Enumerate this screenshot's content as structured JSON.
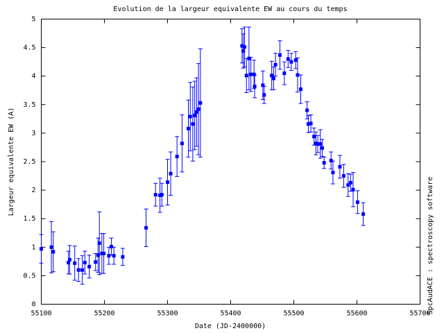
{
  "chart_data": {
    "type": "scatter",
    "title": "Evolution de la largeur equivalente EW au cours du temps",
    "x_label": "Date (JD-2400000)",
    "y_label": "Largeur equivalente EW (A)",
    "annotation": "SpcAudACE : spectroscopy software",
    "color": "#0000ff",
    "xlim": [
      55100,
      55700
    ],
    "ylim": [
      0,
      5
    ],
    "xticks": [
      55100,
      55200,
      55300,
      55400,
      55500,
      55600,
      55700
    ],
    "yticks": [
      0,
      0.5,
      1,
      1.5,
      2,
      2.5,
      3,
      3.5,
      4,
      4.5,
      5
    ],
    "x": [
      55100,
      55116,
      55119,
      55143,
      55145,
      55153,
      55159,
      55165,
      55169,
      55176,
      55186,
      55190,
      55192,
      55196,
      55199,
      55207,
      55211,
      55215,
      55229,
      55266,
      55281,
      55288,
      55291,
      55300,
      55305,
      55315,
      55323,
      55333,
      55336,
      55340,
      55343,
      55346,
      55349,
      55352,
      55418,
      55420,
      55422,
      55425,
      55429,
      55432,
      55437,
      55438,
      55451,
      55453,
      55465,
      55468,
      55471,
      55478,
      55485,
      55491,
      55496,
      55503,
      55506,
      55511,
      55521,
      55523,
      55527,
      55532,
      55535,
      55538,
      55542,
      55545,
      55548,
      55559,
      55562,
      55573,
      55579,
      55586,
      55590,
      55594,
      55601,
      55610
    ],
    "values": [
      0.97,
      1.0,
      0.92,
      0.73,
      0.78,
      0.72,
      0.6,
      0.6,
      0.73,
      0.66,
      0.74,
      0.86,
      1.07,
      0.89,
      0.89,
      0.85,
      1.01,
      0.85,
      0.83,
      1.34,
      1.92,
      1.91,
      1.92,
      2.14,
      2.29,
      2.59,
      2.82,
      3.08,
      3.29,
      3.16,
      3.31,
      3.37,
      3.42,
      3.53,
      4.53,
      4.44,
      4.51,
      4.01,
      4.31,
      4.03,
      4.03,
      3.82,
      3.84,
      3.67,
      4.01,
      3.96,
      4.2,
      4.37,
      4.05,
      4.3,
      4.25,
      4.28,
      4.02,
      3.77,
      3.4,
      3.16,
      3.17,
      2.94,
      2.82,
      2.81,
      2.81,
      2.74,
      2.48,
      2.52,
      2.31,
      2.41,
      2.25,
      2.09,
      2.13,
      2.01,
      1.79,
      1.58
    ],
    "errors": [
      0.25,
      0.45,
      0.35,
      0.2,
      0.25,
      0.3,
      0.2,
      0.25,
      0.2,
      0.2,
      0.15,
      0.3,
      0.55,
      0.35,
      0.35,
      0.15,
      0.15,
      0.15,
      0.15,
      0.33,
      0.2,
      0.3,
      0.2,
      0.4,
      0.38,
      0.35,
      0.5,
      0.5,
      0.6,
      0.65,
      0.6,
      0.6,
      0.8,
      0.95,
      0.3,
      0.3,
      0.35,
      0.3,
      0.55,
      0.3,
      0.25,
      0.2,
      0.25,
      0.15,
      0.25,
      0.2,
      0.2,
      0.25,
      0.2,
      0.15,
      0.15,
      0.15,
      0.3,
      0.25,
      0.15,
      0.15,
      0.15,
      0.15,
      0.2,
      0.15,
      0.25,
      0.15,
      0.1,
      0.15,
      0.2,
      0.2,
      0.2,
      0.2,
      0.15,
      0.3,
      0.2,
      0.2
    ]
  }
}
